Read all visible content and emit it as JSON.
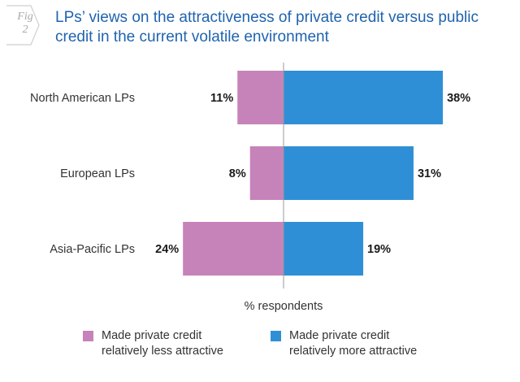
{
  "figure": {
    "badge_word": "Fig",
    "badge_number": "2",
    "title": "LPs’ views on the attractiveness of private credit versus public credit in the current volatile environment"
  },
  "colors": {
    "less": "#c683b9",
    "more": "#2f8fd6",
    "axis": "#999999",
    "title": "#1f63ae"
  },
  "chart_data": {
    "type": "bar",
    "orientation": "horizontal-diverging",
    "categories": [
      "North American LPs",
      "European LPs",
      "Asia-Pacific LPs"
    ],
    "series": [
      {
        "name": "Made private credit relatively less attractive",
        "values": [
          11,
          8,
          24
        ],
        "labels": [
          "11%",
          "8%",
          "24%"
        ],
        "direction": "left"
      },
      {
        "name": "Made private credit relatively more attractive",
        "values": [
          38,
          31,
          19
        ],
        "labels": [
          "38%",
          "31%",
          "19%"
        ],
        "direction": "right"
      }
    ],
    "xlabel": "% respondents",
    "unit": "%",
    "grid": false,
    "legend_position": "bottom"
  },
  "legend": [
    {
      "text": "Made private credit\nrelatively less attractive",
      "color_key": "less"
    },
    {
      "text": "Made private credit\nrelatively more attractive",
      "color_key": "more"
    }
  ]
}
